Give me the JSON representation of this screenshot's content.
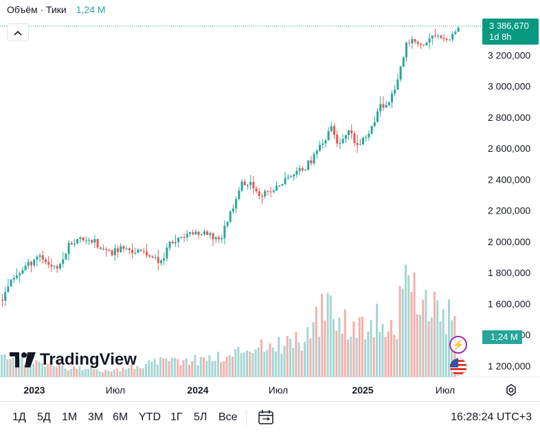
{
  "legend": {
    "label": "Объём · Тики",
    "volume_value": "1,24 M"
  },
  "price_label": {
    "price": "3 386,670",
    "countdown": "1d 8h"
  },
  "volume_label": "1,24 M",
  "logo_text": "TradingView",
  "toolbar": {
    "timeframes": [
      "1Д",
      "5Д",
      "1М",
      "3М",
      "6М",
      "YTD",
      "1Г",
      "5Л",
      "Все"
    ],
    "clock": "16:28:24 UTC+3"
  },
  "colors": {
    "up": "#26a69a",
    "down": "#ef5350",
    "up_volume": "#a5d6d2",
    "down_volume": "#f7aeab",
    "last_price": "#089981"
  },
  "icons": [
    "collapse-chevron-icon",
    "lightning-icon",
    "us-flag-icon",
    "settings-icon",
    "calendar-range-icon"
  ],
  "chart_data": {
    "type": "candlestick",
    "y_axis": {
      "ticks": [
        1200000,
        1400000,
        1600000,
        1800000,
        2000000,
        2200000,
        2400000,
        2600000,
        2800000,
        3000000,
        3200000
      ],
      "tick_labels": [
        "1 200,000",
        "1 400,000",
        "1 600,000",
        "1 800,000",
        "2 000,000",
        "2 200,000",
        "2 400,000",
        "2 600,000",
        "2 800,000",
        "3 000,000",
        "3 200,000"
      ],
      "range": [
        1135000,
        3440000
      ]
    },
    "x_axis": {
      "labels": [
        "2023",
        "Июл",
        "2024",
        "Июл",
        "2025",
        "Июл"
      ],
      "bold": [
        "2023",
        "2024",
        "2025"
      ]
    },
    "last_price": 3386670,
    "price_path": [
      [
        0,
        1625000
      ],
      [
        10,
        1720000
      ],
      [
        30,
        1820000
      ],
      [
        55,
        1920000
      ],
      [
        68,
        1860000
      ],
      [
        85,
        1830000
      ],
      [
        100,
        1990000
      ],
      [
        115,
        2020000
      ],
      [
        130,
        2020000
      ],
      [
        145,
        1950000
      ],
      [
        160,
        1930000
      ],
      [
        175,
        1960000
      ],
      [
        195,
        1940000
      ],
      [
        215,
        1920000
      ],
      [
        230,
        1860000
      ],
      [
        245,
        1980000
      ],
      [
        262,
        2020000
      ],
      [
        280,
        2060000
      ],
      [
        300,
        2040000
      ],
      [
        320,
        2020000
      ],
      [
        335,
        2200000
      ],
      [
        350,
        2380000
      ],
      [
        362,
        2360000
      ],
      [
        375,
        2320000
      ],
      [
        390,
        2310000
      ],
      [
        405,
        2360000
      ],
      [
        420,
        2420000
      ],
      [
        435,
        2460000
      ],
      [
        450,
        2500000
      ],
      [
        460,
        2600000
      ],
      [
        470,
        2640000
      ],
      [
        480,
        2750000
      ],
      [
        492,
        2610000
      ],
      [
        505,
        2700000
      ],
      [
        520,
        2610000
      ],
      [
        535,
        2700000
      ],
      [
        550,
        2860000
      ],
      [
        565,
        2900000
      ],
      [
        578,
        3050000
      ],
      [
        590,
        3250000
      ],
      [
        600,
        3300000
      ],
      [
        612,
        3250000
      ],
      [
        625,
        3310000
      ],
      [
        640,
        3320000
      ],
      [
        652,
        3310000
      ],
      [
        667,
        3386670
      ]
    ],
    "volume_profile": [
      [
        0,
        30
      ],
      [
        60,
        25
      ],
      [
        100,
        15
      ],
      [
        140,
        12
      ],
      [
        180,
        14
      ],
      [
        220,
        25
      ],
      [
        260,
        28
      ],
      [
        300,
        32
      ],
      [
        340,
        38
      ],
      [
        360,
        55
      ],
      [
        380,
        52
      ],
      [
        420,
        60
      ],
      [
        440,
        65
      ],
      [
        470,
        110
      ],
      [
        488,
        120
      ],
      [
        500,
        95
      ],
      [
        520,
        85
      ],
      [
        540,
        100
      ],
      [
        560,
        90
      ],
      [
        575,
        85
      ],
      [
        588,
        160
      ],
      [
        600,
        145
      ],
      [
        615,
        125
      ],
      [
        630,
        120
      ],
      [
        645,
        105
      ],
      [
        662,
        90
      ]
    ]
  }
}
